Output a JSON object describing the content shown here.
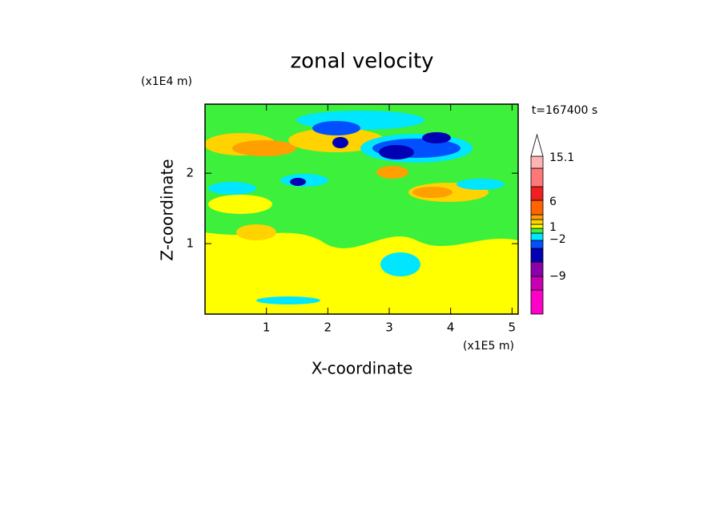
{
  "chart_data": {
    "type": "contour",
    "title": "zonal velocity",
    "ylabel": "Z-coordinate",
    "xlabel": "X-coordinate",
    "yunit": "(x1E4 m)",
    "xunit": "(x1E5 m)",
    "time_label": "t=167400 s",
    "xlim": [
      0,
      5.1
    ],
    "xticks": [
      1,
      2,
      3,
      4,
      5
    ],
    "ylim": [
      0,
      2.98
    ],
    "yticks": [
      1,
      2
    ],
    "colorbar_colors": [
      "#ff00c8",
      "#c800b4",
      "#8c00aa",
      "#0000b4",
      "#0050ff",
      "#00e6ff",
      "#3cf03c",
      "#ffff00",
      "#ffd200",
      "#ffa000",
      "#ff6400",
      "#f02020",
      "#ff7878",
      "#ffb4b4"
    ],
    "colorbar_ticks": [
      {
        "value": 15.1,
        "label": "15.1"
      },
      6,
      1,
      {
        "value": -2,
        "label": "−2"
      },
      {
        "value": -9,
        "label": "−9"
      }
    ]
  }
}
